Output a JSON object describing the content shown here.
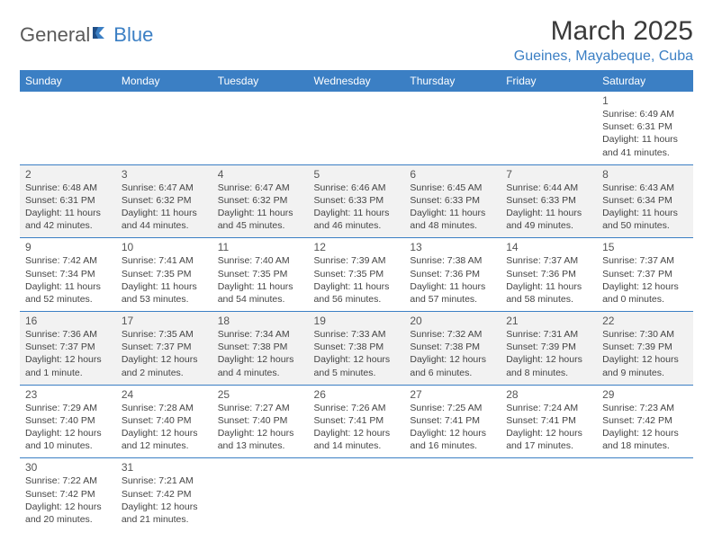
{
  "logo": {
    "text1": "General",
    "text2": "Blue"
  },
  "title": "March 2025",
  "location": "Gueines, Mayabeque, Cuba",
  "colors": {
    "header_bg": "#3b7fc4",
    "header_text": "#ffffff",
    "border": "#3b7fc4",
    "shaded": "#f2f2f2",
    "title_color": "#3a3a3a",
    "location_color": "#3b7fc4"
  },
  "weekdays": [
    "Sunday",
    "Monday",
    "Tuesday",
    "Wednesday",
    "Thursday",
    "Friday",
    "Saturday"
  ],
  "weeks": [
    [
      null,
      null,
      null,
      null,
      null,
      null,
      {
        "n": "1",
        "sr": "Sunrise: 6:49 AM",
        "ss": "Sunset: 6:31 PM",
        "dl": "Daylight: 11 hours and 41 minutes."
      }
    ],
    [
      {
        "n": "2",
        "sr": "Sunrise: 6:48 AM",
        "ss": "Sunset: 6:31 PM",
        "dl": "Daylight: 11 hours and 42 minutes."
      },
      {
        "n": "3",
        "sr": "Sunrise: 6:47 AM",
        "ss": "Sunset: 6:32 PM",
        "dl": "Daylight: 11 hours and 44 minutes."
      },
      {
        "n": "4",
        "sr": "Sunrise: 6:47 AM",
        "ss": "Sunset: 6:32 PM",
        "dl": "Daylight: 11 hours and 45 minutes."
      },
      {
        "n": "5",
        "sr": "Sunrise: 6:46 AM",
        "ss": "Sunset: 6:33 PM",
        "dl": "Daylight: 11 hours and 46 minutes."
      },
      {
        "n": "6",
        "sr": "Sunrise: 6:45 AM",
        "ss": "Sunset: 6:33 PM",
        "dl": "Daylight: 11 hours and 48 minutes."
      },
      {
        "n": "7",
        "sr": "Sunrise: 6:44 AM",
        "ss": "Sunset: 6:33 PM",
        "dl": "Daylight: 11 hours and 49 minutes."
      },
      {
        "n": "8",
        "sr": "Sunrise: 6:43 AM",
        "ss": "Sunset: 6:34 PM",
        "dl": "Daylight: 11 hours and 50 minutes."
      }
    ],
    [
      {
        "n": "9",
        "sr": "Sunrise: 7:42 AM",
        "ss": "Sunset: 7:34 PM",
        "dl": "Daylight: 11 hours and 52 minutes."
      },
      {
        "n": "10",
        "sr": "Sunrise: 7:41 AM",
        "ss": "Sunset: 7:35 PM",
        "dl": "Daylight: 11 hours and 53 minutes."
      },
      {
        "n": "11",
        "sr": "Sunrise: 7:40 AM",
        "ss": "Sunset: 7:35 PM",
        "dl": "Daylight: 11 hours and 54 minutes."
      },
      {
        "n": "12",
        "sr": "Sunrise: 7:39 AM",
        "ss": "Sunset: 7:35 PM",
        "dl": "Daylight: 11 hours and 56 minutes."
      },
      {
        "n": "13",
        "sr": "Sunrise: 7:38 AM",
        "ss": "Sunset: 7:36 PM",
        "dl": "Daylight: 11 hours and 57 minutes."
      },
      {
        "n": "14",
        "sr": "Sunrise: 7:37 AM",
        "ss": "Sunset: 7:36 PM",
        "dl": "Daylight: 11 hours and 58 minutes."
      },
      {
        "n": "15",
        "sr": "Sunrise: 7:37 AM",
        "ss": "Sunset: 7:37 PM",
        "dl": "Daylight: 12 hours and 0 minutes."
      }
    ],
    [
      {
        "n": "16",
        "sr": "Sunrise: 7:36 AM",
        "ss": "Sunset: 7:37 PM",
        "dl": "Daylight: 12 hours and 1 minute."
      },
      {
        "n": "17",
        "sr": "Sunrise: 7:35 AM",
        "ss": "Sunset: 7:37 PM",
        "dl": "Daylight: 12 hours and 2 minutes."
      },
      {
        "n": "18",
        "sr": "Sunrise: 7:34 AM",
        "ss": "Sunset: 7:38 PM",
        "dl": "Daylight: 12 hours and 4 minutes."
      },
      {
        "n": "19",
        "sr": "Sunrise: 7:33 AM",
        "ss": "Sunset: 7:38 PM",
        "dl": "Daylight: 12 hours and 5 minutes."
      },
      {
        "n": "20",
        "sr": "Sunrise: 7:32 AM",
        "ss": "Sunset: 7:38 PM",
        "dl": "Daylight: 12 hours and 6 minutes."
      },
      {
        "n": "21",
        "sr": "Sunrise: 7:31 AM",
        "ss": "Sunset: 7:39 PM",
        "dl": "Daylight: 12 hours and 8 minutes."
      },
      {
        "n": "22",
        "sr": "Sunrise: 7:30 AM",
        "ss": "Sunset: 7:39 PM",
        "dl": "Daylight: 12 hours and 9 minutes."
      }
    ],
    [
      {
        "n": "23",
        "sr": "Sunrise: 7:29 AM",
        "ss": "Sunset: 7:40 PM",
        "dl": "Daylight: 12 hours and 10 minutes."
      },
      {
        "n": "24",
        "sr": "Sunrise: 7:28 AM",
        "ss": "Sunset: 7:40 PM",
        "dl": "Daylight: 12 hours and 12 minutes."
      },
      {
        "n": "25",
        "sr": "Sunrise: 7:27 AM",
        "ss": "Sunset: 7:40 PM",
        "dl": "Daylight: 12 hours and 13 minutes."
      },
      {
        "n": "26",
        "sr": "Sunrise: 7:26 AM",
        "ss": "Sunset: 7:41 PM",
        "dl": "Daylight: 12 hours and 14 minutes."
      },
      {
        "n": "27",
        "sr": "Sunrise: 7:25 AM",
        "ss": "Sunset: 7:41 PM",
        "dl": "Daylight: 12 hours and 16 minutes."
      },
      {
        "n": "28",
        "sr": "Sunrise: 7:24 AM",
        "ss": "Sunset: 7:41 PM",
        "dl": "Daylight: 12 hours and 17 minutes."
      },
      {
        "n": "29",
        "sr": "Sunrise: 7:23 AM",
        "ss": "Sunset: 7:42 PM",
        "dl": "Daylight: 12 hours and 18 minutes."
      }
    ],
    [
      {
        "n": "30",
        "sr": "Sunrise: 7:22 AM",
        "ss": "Sunset: 7:42 PM",
        "dl": "Daylight: 12 hours and 20 minutes."
      },
      {
        "n": "31",
        "sr": "Sunrise: 7:21 AM",
        "ss": "Sunset: 7:42 PM",
        "dl": "Daylight: 12 hours and 21 minutes."
      },
      null,
      null,
      null,
      null,
      null
    ]
  ]
}
